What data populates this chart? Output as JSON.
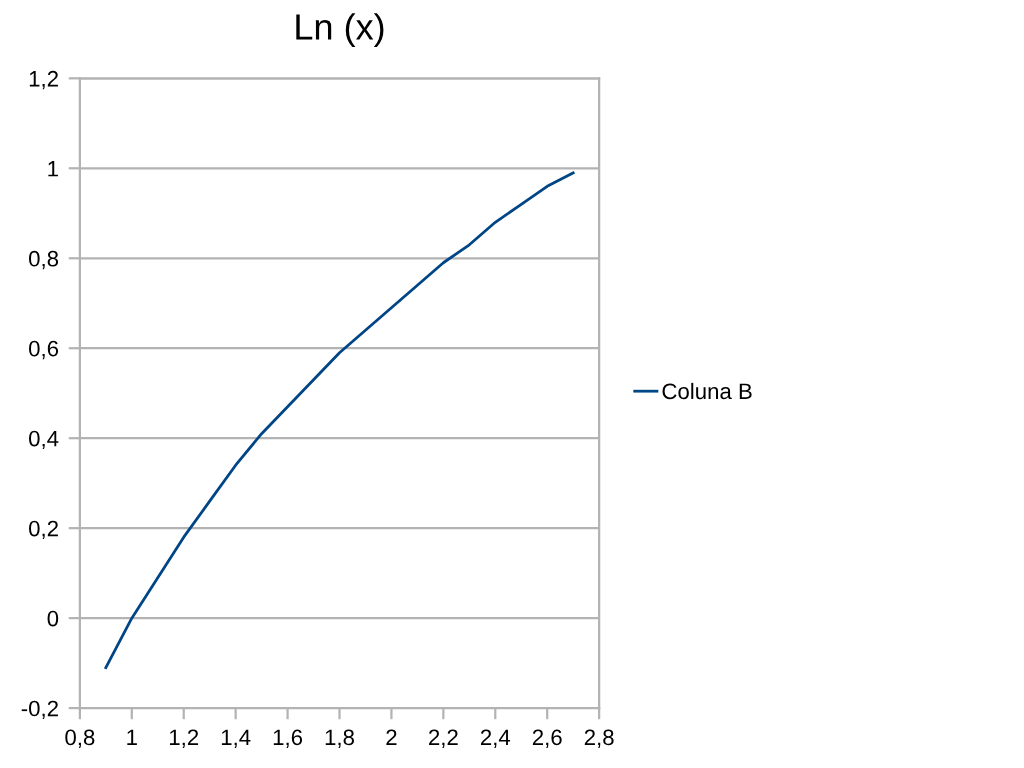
{
  "chart_data": {
    "type": "line",
    "title": "Ln (x)",
    "x": [
      0.9,
      1.0,
      1.1,
      1.2,
      1.3,
      1.4,
      1.5,
      1.6,
      1.7,
      1.8,
      1.9,
      2.0,
      2.1,
      2.2,
      2.3,
      2.4,
      2.5,
      2.6,
      2.7
    ],
    "series": [
      {
        "name": "Coluna B",
        "color": "#004586",
        "values": [
          -0.11,
          0.0,
          0.09,
          0.18,
          0.26,
          0.34,
          0.41,
          0.47,
          0.53,
          0.59,
          0.64,
          0.69,
          0.74,
          0.79,
          0.83,
          0.88,
          0.92,
          0.96,
          0.99
        ]
      }
    ],
    "xlim": [
      0.8,
      2.8
    ],
    "xticks": [
      {
        "value": 0.8,
        "label": "0,8"
      },
      {
        "value": 1,
        "label": "1"
      },
      {
        "value": 1.2,
        "label": "1,2"
      },
      {
        "value": 1.4,
        "label": "1,4"
      },
      {
        "value": 1.6,
        "label": "1,6"
      },
      {
        "value": 1.8,
        "label": "1,8"
      },
      {
        "value": 2,
        "label": "2"
      },
      {
        "value": 2.2,
        "label": "2,2"
      },
      {
        "value": 2.4,
        "label": "2,4"
      },
      {
        "value": 2.6,
        "label": "2,6"
      },
      {
        "value": 2.8,
        "label": "2,8"
      }
    ],
    "ylim": [
      -0.2,
      1.2
    ],
    "yticks": [
      {
        "value": -0.2,
        "label": "-0,2"
      },
      0,
      {
        "value": 0.2,
        "label": "0,2"
      },
      {
        "value": 0.4,
        "label": "0,4"
      },
      {
        "value": 0.6,
        "label": "0,6"
      },
      {
        "value": 0.8,
        "label": "0,8"
      },
      1,
      {
        "value": 1.2,
        "label": "1,2"
      }
    ],
    "grid": "y",
    "legend": "right",
    "marker": "none",
    "line_style": "solid"
  }
}
